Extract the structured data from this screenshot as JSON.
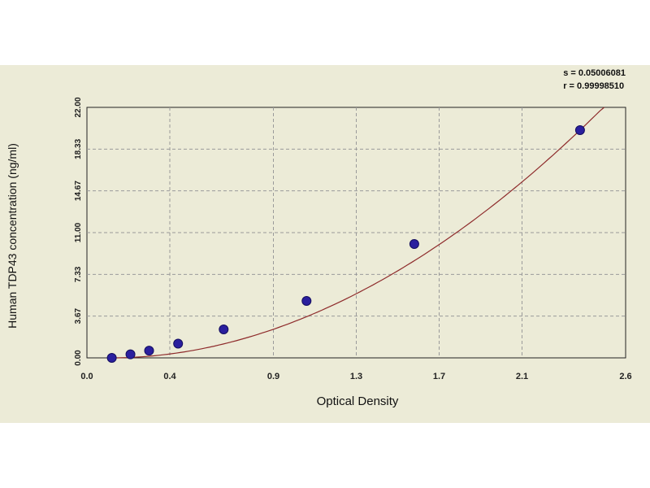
{
  "stats": {
    "s_text": "s = 0.05006081",
    "r_text": "r = 0.99998510"
  },
  "chart_data": {
    "type": "scatter",
    "xlabel": "Optical Density",
    "ylabel": "Human TDP43 concentration (ng/ml)",
    "xlim": [
      0.0,
      2.6
    ],
    "ylim": [
      0.0,
      22.0
    ],
    "x_ticks": [
      0.0,
      0.4,
      0.9,
      1.3,
      1.7,
      2.1,
      2.6
    ],
    "x_tick_labels": [
      "0.0",
      "0.4",
      "0.9",
      "1.3",
      "1.7",
      "2.1",
      "2.6"
    ],
    "y_ticks": [
      0.0,
      3.67,
      7.33,
      11.0,
      14.67,
      18.33,
      22.0
    ],
    "y_tick_labels": [
      "0.00",
      "3.67",
      "7.33",
      "11.00",
      "14.67",
      "18.33",
      "22.00"
    ],
    "grid": true,
    "series": [
      {
        "points": [
          {
            "x": 0.12,
            "y": 0.0
          },
          {
            "x": 0.21,
            "y": 0.31
          },
          {
            "x": 0.3,
            "y": 0.63
          },
          {
            "x": 0.44,
            "y": 1.25
          },
          {
            "x": 0.66,
            "y": 2.5
          },
          {
            "x": 1.06,
            "y": 5.0
          },
          {
            "x": 1.58,
            "y": 10.0
          },
          {
            "x": 2.38,
            "y": 20.0
          }
        ]
      }
    ],
    "fit_curve": {
      "a": 0.28,
      "b": 1.95
    },
    "colors": {
      "marker": "#2a1f9e",
      "curve": "#8e2b2b",
      "background": "#ecebd7",
      "grid": "#9a9a9a"
    }
  }
}
